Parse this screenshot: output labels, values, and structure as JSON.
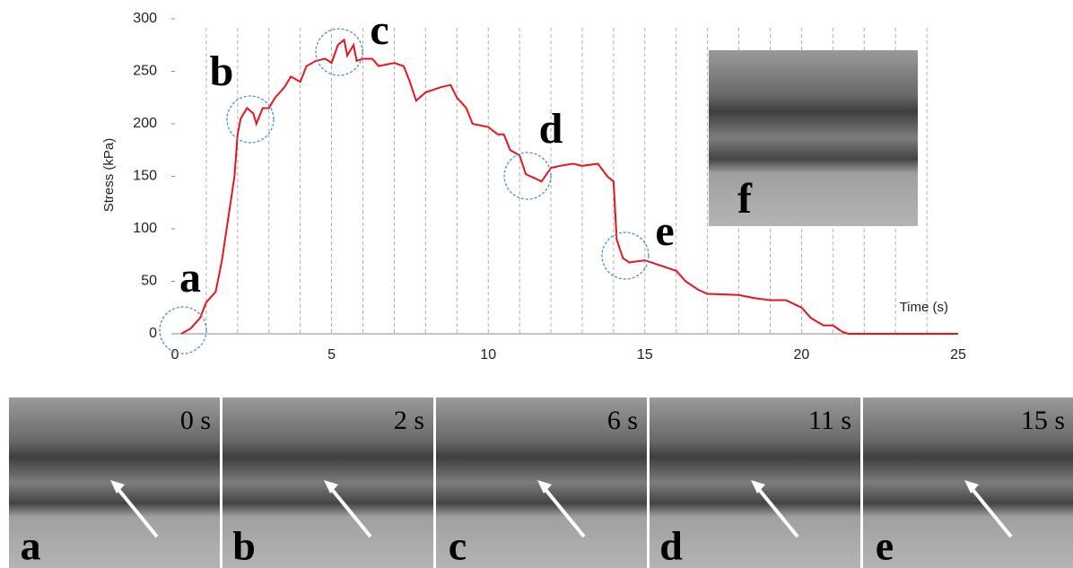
{
  "chart_data": {
    "type": "line",
    "x_label": "Time (s)",
    "y_label": "Stress (kPa)",
    "x": [
      0.2,
      0.5,
      0.8,
      1.0,
      1.3,
      1.5,
      1.7,
      1.9,
      2.0,
      2.1,
      2.3,
      2.5,
      2.6,
      2.8,
      3.0,
      3.2,
      3.5,
      3.7,
      4.0,
      4.2,
      4.5,
      4.8,
      5.0,
      5.2,
      5.4,
      5.5,
      5.7,
      5.8,
      6.0,
      6.3,
      6.5,
      7.0,
      7.3,
      7.5,
      7.7,
      8.0,
      8.5,
      8.8,
      9.0,
      9.3,
      9.5,
      10.0,
      10.3,
      10.5,
      10.7,
      11.0,
      11.2,
      11.5,
      11.7,
      12.0,
      12.3,
      12.7,
      13.0,
      13.5,
      13.8,
      14.0,
      14.1,
      14.3,
      14.5,
      15.0,
      15.5,
      16.0,
      16.3,
      16.7,
      17.0,
      18.0,
      18.5,
      19.0,
      19.5,
      20.0,
      20.3,
      20.7,
      21.0,
      21.3,
      21.5,
      23.5,
      25.0
    ],
    "series": [
      {
        "color": "#e8141c",
        "values": [
          0,
          5,
          15,
          30,
          40,
          70,
          110,
          150,
          190,
          205,
          215,
          210,
          200,
          215,
          215,
          225,
          235,
          245,
          240,
          255,
          260,
          262,
          258,
          275,
          280,
          265,
          275,
          260,
          262,
          262,
          255,
          258,
          255,
          240,
          222,
          230,
          235,
          237,
          225,
          215,
          200,
          197,
          190,
          190,
          175,
          170,
          152,
          148,
          145,
          158,
          160,
          162,
          160,
          162,
          150,
          145,
          90,
          72,
          68,
          70,
          65,
          60,
          50,
          42,
          38,
          37,
          34,
          32,
          32,
          25,
          15,
          8,
          8,
          2,
          0,
          0,
          0
        ]
      }
    ],
    "xlim": [
      0,
      25
    ],
    "xticks": [
      0,
      5,
      10,
      15,
      20,
      25
    ],
    "ylim": [
      0,
      300
    ],
    "yticks": [
      0,
      50,
      100,
      150,
      200,
      250,
      300
    ],
    "xgrid": [
      1,
      2,
      3,
      4,
      5,
      6,
      7,
      8,
      9,
      10,
      11,
      12,
      13,
      14,
      15,
      16,
      17,
      18,
      19,
      20,
      21,
      22,
      23,
      24
    ],
    "annotations": [
      "a",
      "b",
      "c",
      "d",
      "e",
      "f"
    ]
  },
  "panels": [
    {
      "time": "0 s",
      "letter": "a"
    },
    {
      "time": "2 s",
      "letter": "b"
    },
    {
      "time": "6 s",
      "letter": "c"
    },
    {
      "time": "11 s",
      "letter": "d"
    },
    {
      "time": "15 s",
      "letter": "e"
    }
  ]
}
